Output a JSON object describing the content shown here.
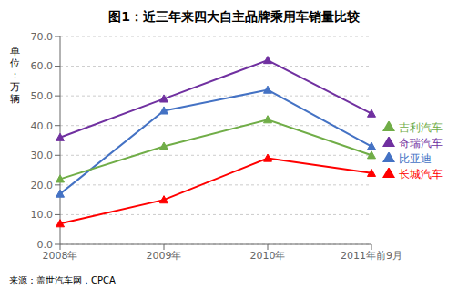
{
  "chart_data": {
    "type": "line",
    "title": "图1：近三年来四大自主品牌乘用车销量比较",
    "ylabel": "单位：万辆",
    "annotations": [
      "来源：盖世汽车网，CPCA"
    ],
    "categories": [
      "2008年",
      "2009年",
      "2010年",
      "2011年前9月"
    ],
    "series": [
      {
        "name": "比亚迪",
        "color": "#4472C4",
        "marker": "triangle",
        "values": [
          17,
          45,
          52,
          33
        ]
      },
      {
        "name": "长城汽车",
        "color": "#FF0000",
        "marker": "triangle",
        "values": [
          7,
          15,
          29,
          24
        ]
      },
      {
        "name": "吉利汽车",
        "color": "#70AD47",
        "marker": "triangle",
        "values": [
          22,
          33,
          42,
          30
        ]
      },
      {
        "name": "奇瑞汽车",
        "color": "#7030A0",
        "marker": "triangle",
        "values": [
          36,
          49,
          62,
          44
        ]
      }
    ],
    "ylim": [
      0,
      70
    ],
    "yticks": [
      {
        "value": 0,
        "label": "0.0"
      },
      {
        "value": 10,
        "label": "10.0"
      },
      {
        "value": 20,
        "label": "20.0"
      },
      {
        "value": 30,
        "label": "30.0"
      },
      {
        "value": 40,
        "label": "40.0"
      },
      {
        "value": 50,
        "label": "50.0"
      },
      {
        "value": 60,
        "label": "60.0"
      },
      {
        "value": 70,
        "label": "70.0"
      }
    ],
    "grid": true,
    "legend": "right"
  }
}
